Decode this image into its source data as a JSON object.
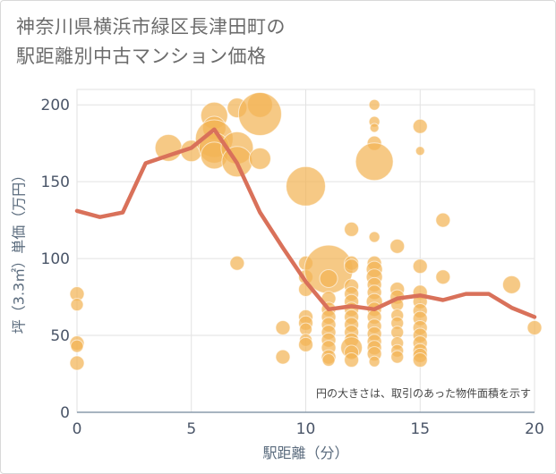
{
  "title_line1": "神奈川県横浜市緑区長津田町の",
  "title_line2": "駅距離別中古マンション価格",
  "chart_data": {
    "type": "scatter",
    "xlabel": "駅距離（分）",
    "ylabel": "坪（3.3㎡）単価（万円）",
    "xlim": [
      0,
      20
    ],
    "ylim": [
      0,
      210
    ],
    "xticks": [
      0,
      5,
      10,
      15,
      20
    ],
    "yticks": [
      0,
      50,
      100,
      150,
      200
    ],
    "grid": true,
    "annotation": "円の大きさは、取引のあった物件面積を示す",
    "colors": {
      "bubble": "#f2b456",
      "line": "#d9715a",
      "grid": "#e2e2e2"
    },
    "line_series": {
      "x": [
        0,
        1,
        2,
        3,
        4,
        5,
        6,
        7,
        8,
        9,
        10,
        11,
        12,
        13,
        14,
        15,
        16,
        17,
        18,
        19,
        20
      ],
      "y": [
        131,
        127,
        130,
        162,
        167,
        172,
        184,
        162,
        130,
        107,
        85,
        67,
        69,
        67,
        74,
        76,
        73,
        77,
        77,
        68,
        62
      ]
    },
    "bubbles": [
      {
        "x": 0,
        "y": 77,
        "r": 8
      },
      {
        "x": 0,
        "y": 70,
        "r": 7
      },
      {
        "x": 0,
        "y": 45,
        "r": 8
      },
      {
        "x": 0,
        "y": 43,
        "r": 7
      },
      {
        "x": 0,
        "y": 32,
        "r": 8
      },
      {
        "x": 4,
        "y": 172,
        "r": 15
      },
      {
        "x": 5,
        "y": 170,
        "r": 12
      },
      {
        "x": 6,
        "y": 193,
        "r": 15
      },
      {
        "x": 6,
        "y": 185,
        "r": 13
      },
      {
        "x": 6,
        "y": 178,
        "r": 21
      },
      {
        "x": 6,
        "y": 172,
        "r": 17
      },
      {
        "x": 6,
        "y": 167,
        "r": 15
      },
      {
        "x": 7,
        "y": 198,
        "r": 11
      },
      {
        "x": 7,
        "y": 172,
        "r": 18
      },
      {
        "x": 7,
        "y": 163,
        "r": 17
      },
      {
        "x": 7,
        "y": 97,
        "r": 8
      },
      {
        "x": 8,
        "y": 200,
        "r": 14
      },
      {
        "x": 8,
        "y": 194,
        "r": 24
      },
      {
        "x": 8,
        "y": 165,
        "r": 12
      },
      {
        "x": 9,
        "y": 55,
        "r": 8
      },
      {
        "x": 9,
        "y": 36,
        "r": 8
      },
      {
        "x": 10,
        "y": 147,
        "r": 22
      },
      {
        "x": 10,
        "y": 97,
        "r": 8
      },
      {
        "x": 10,
        "y": 88,
        "r": 8
      },
      {
        "x": 10,
        "y": 80,
        "r": 8
      },
      {
        "x": 10,
        "y": 62,
        "r": 8
      },
      {
        "x": 10,
        "y": 58,
        "r": 8
      },
      {
        "x": 10,
        "y": 54,
        "r": 7
      },
      {
        "x": 10,
        "y": 47,
        "r": 7
      },
      {
        "x": 10,
        "y": 44,
        "r": 8
      },
      {
        "x": 11,
        "y": 93,
        "r": 27
      },
      {
        "x": 11,
        "y": 87,
        "r": 10
      },
      {
        "x": 11,
        "y": 74,
        "r": 8
      },
      {
        "x": 11,
        "y": 67,
        "r": 8
      },
      {
        "x": 11,
        "y": 62,
        "r": 8
      },
      {
        "x": 11,
        "y": 57,
        "r": 8
      },
      {
        "x": 11,
        "y": 52,
        "r": 8
      },
      {
        "x": 11,
        "y": 47,
        "r": 8
      },
      {
        "x": 11,
        "y": 42,
        "r": 8
      },
      {
        "x": 11,
        "y": 36,
        "r": 8
      },
      {
        "x": 11,
        "y": 34,
        "r": 7
      },
      {
        "x": 12,
        "y": 119,
        "r": 8
      },
      {
        "x": 12,
        "y": 97,
        "r": 8
      },
      {
        "x": 12,
        "y": 95,
        "r": 8
      },
      {
        "x": 12,
        "y": 82,
        "r": 8
      },
      {
        "x": 12,
        "y": 77,
        "r": 8
      },
      {
        "x": 12,
        "y": 72,
        "r": 8
      },
      {
        "x": 12,
        "y": 67,
        "r": 8
      },
      {
        "x": 12,
        "y": 62,
        "r": 8
      },
      {
        "x": 12,
        "y": 57,
        "r": 8
      },
      {
        "x": 12,
        "y": 52,
        "r": 8
      },
      {
        "x": 12,
        "y": 47,
        "r": 8
      },
      {
        "x": 12,
        "y": 42,
        "r": 12
      },
      {
        "x": 12,
        "y": 39,
        "r": 8
      },
      {
        "x": 12,
        "y": 34,
        "r": 8
      },
      {
        "x": 13,
        "y": 200,
        "r": 6
      },
      {
        "x": 13,
        "y": 189,
        "r": 6
      },
      {
        "x": 13,
        "y": 185,
        "r": 5
      },
      {
        "x": 13,
        "y": 175,
        "r": 8
      },
      {
        "x": 13,
        "y": 163,
        "r": 21
      },
      {
        "x": 13,
        "y": 114,
        "r": 6
      },
      {
        "x": 13,
        "y": 97,
        "r": 8
      },
      {
        "x": 13,
        "y": 93,
        "r": 9
      },
      {
        "x": 13,
        "y": 88,
        "r": 9
      },
      {
        "x": 13,
        "y": 83,
        "r": 8
      },
      {
        "x": 13,
        "y": 78,
        "r": 8
      },
      {
        "x": 13,
        "y": 72,
        "r": 9
      },
      {
        "x": 13,
        "y": 67,
        "r": 8
      },
      {
        "x": 13,
        "y": 62,
        "r": 8
      },
      {
        "x": 13,
        "y": 56,
        "r": 8
      },
      {
        "x": 13,
        "y": 51,
        "r": 8
      },
      {
        "x": 13,
        "y": 46,
        "r": 8
      },
      {
        "x": 13,
        "y": 42,
        "r": 8
      },
      {
        "x": 13,
        "y": 38,
        "r": 8
      },
      {
        "x": 13,
        "y": 33,
        "r": 6
      },
      {
        "x": 14,
        "y": 108,
        "r": 8
      },
      {
        "x": 14,
        "y": 80,
        "r": 8
      },
      {
        "x": 14,
        "y": 75,
        "r": 8
      },
      {
        "x": 14,
        "y": 70,
        "r": 7
      },
      {
        "x": 14,
        "y": 63,
        "r": 7
      },
      {
        "x": 14,
        "y": 58,
        "r": 7
      },
      {
        "x": 14,
        "y": 52,
        "r": 7
      },
      {
        "x": 14,
        "y": 45,
        "r": 7
      },
      {
        "x": 14,
        "y": 40,
        "r": 7
      },
      {
        "x": 14,
        "y": 36,
        "r": 7
      },
      {
        "x": 15,
        "y": 186,
        "r": 8
      },
      {
        "x": 15,
        "y": 170,
        "r": 5
      },
      {
        "x": 15,
        "y": 95,
        "r": 8
      },
      {
        "x": 15,
        "y": 78,
        "r": 8
      },
      {
        "x": 15,
        "y": 72,
        "r": 8
      },
      {
        "x": 15,
        "y": 66,
        "r": 8
      },
      {
        "x": 15,
        "y": 61,
        "r": 8
      },
      {
        "x": 15,
        "y": 55,
        "r": 8
      },
      {
        "x": 15,
        "y": 50,
        "r": 8
      },
      {
        "x": 15,
        "y": 45,
        "r": 8
      },
      {
        "x": 15,
        "y": 40,
        "r": 8
      },
      {
        "x": 15,
        "y": 37,
        "r": 8
      },
      {
        "x": 15,
        "y": 34,
        "r": 8
      },
      {
        "x": 16,
        "y": 125,
        "r": 8
      },
      {
        "x": 16,
        "y": 88,
        "r": 8
      },
      {
        "x": 19,
        "y": 83,
        "r": 10
      },
      {
        "x": 20,
        "y": 55,
        "r": 8
      }
    ]
  }
}
